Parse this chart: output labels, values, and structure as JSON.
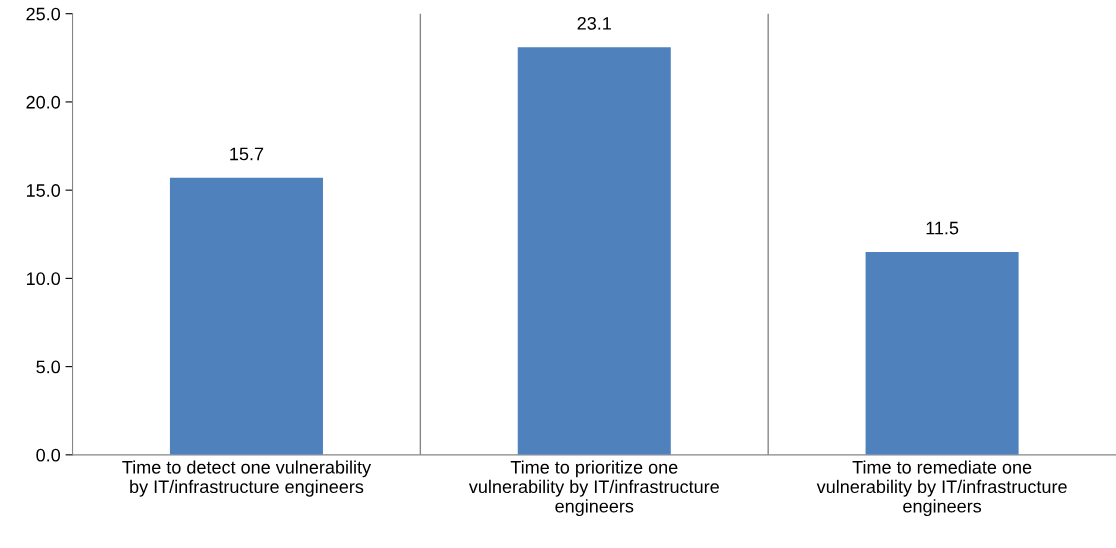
{
  "chart_data": {
    "type": "bar",
    "categories": [
      "Time to detect one vulnerability\nby IT/infrastructure engineers",
      "Time to prioritize one\nvulnerability by IT/infrastructure\nengineers",
      "Time to remediate one\nvulnerability by IT/infrastructure\nengineers"
    ],
    "values": [
      15.7,
      23.1,
      11.5
    ],
    "color": "#4f81bd",
    "ylim": [
      0,
      25
    ],
    "yticks": [
      {
        "value": 0,
        "label": "0.0"
      },
      {
        "value": 5,
        "label": "5.0"
      },
      {
        "value": 10,
        "label": "10.0"
      },
      {
        "value": 15,
        "label": "15.0"
      },
      {
        "value": 20,
        "label": "20.0"
      },
      {
        "value": 25,
        "label": "25.0"
      }
    ],
    "grid": "x",
    "data_labels": true
  }
}
